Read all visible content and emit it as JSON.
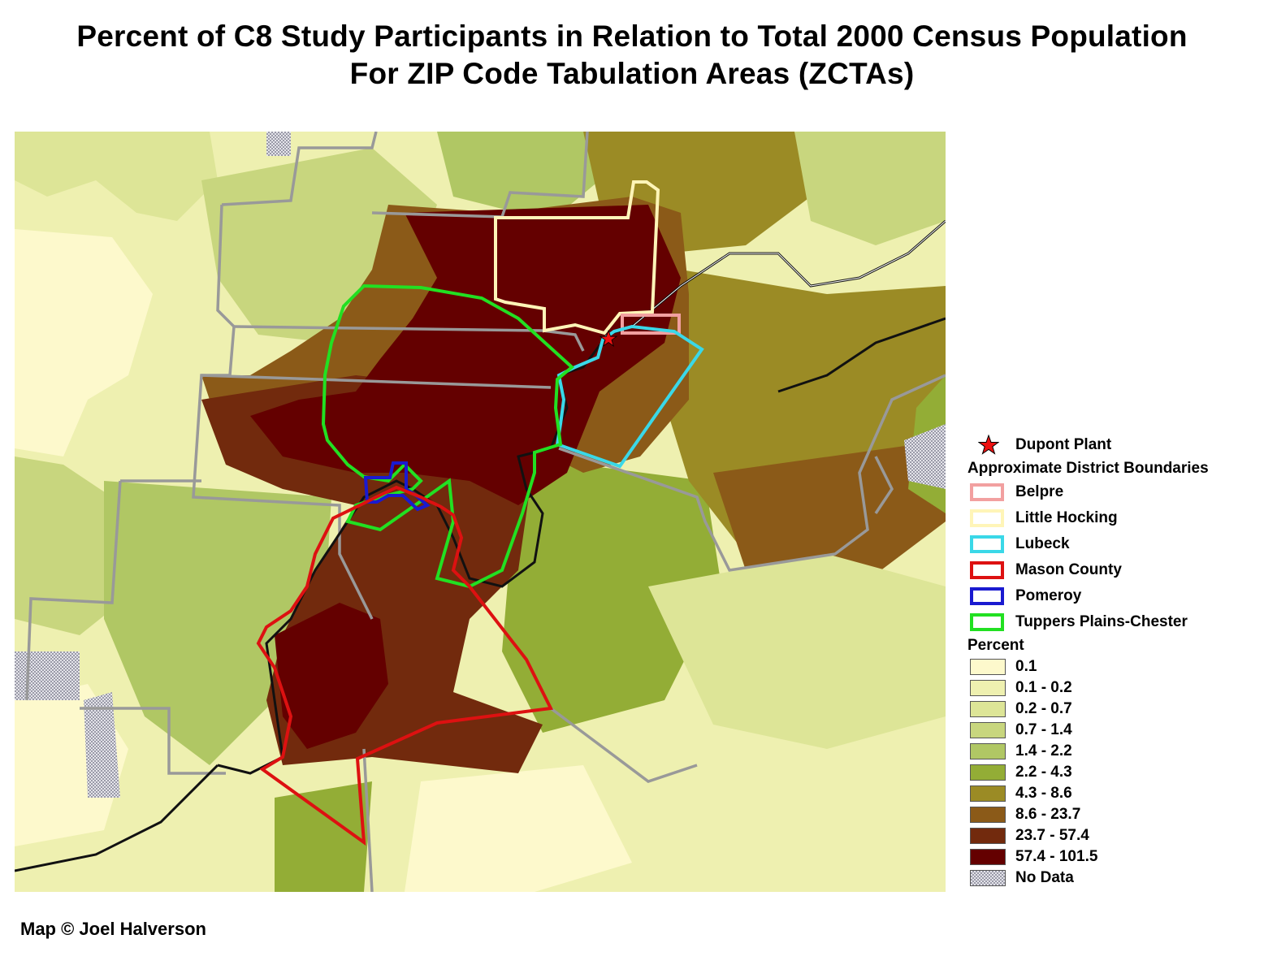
{
  "title": {
    "line1": "Percent of C8 Study Participants in Relation to Total 2000 Census Population",
    "line2": "For ZIP Code Tabulation Areas (ZCTAs)"
  },
  "legend": {
    "plant_label": "Dupont Plant",
    "plant_icon": "red-star-icon",
    "districts_heading": "Approximate District Boundaries",
    "districts": [
      {
        "name": "Belpre",
        "color": "#f2a0a0"
      },
      {
        "name": "Little Hocking",
        "color": "#fff5b8"
      },
      {
        "name": "Lubeck",
        "color": "#3ad8e8"
      },
      {
        "name": "Mason County",
        "color": "#dd1111"
      },
      {
        "name": "Pomeroy",
        "color": "#1a1ad0"
      },
      {
        "name": "Tuppers Plains-Chester",
        "color": "#22e022"
      }
    ],
    "percent_heading": "Percent",
    "classes": [
      {
        "label": "0.1",
        "color": "#fdf9cc"
      },
      {
        "label": "0.1 - 0.2",
        "color": "#eef0b0"
      },
      {
        "label": "0.2 - 0.7",
        "color": "#dde597"
      },
      {
        "label": "0.7 - 1.4",
        "color": "#c8d67e"
      },
      {
        "label": "1.4 - 2.2",
        "color": "#b0c764"
      },
      {
        "label": "2.2 - 4.3",
        "color": "#93ad36"
      },
      {
        "label": "4.3 - 8.6",
        "color": "#9b8b25"
      },
      {
        "label": "8.6 - 23.7",
        "color": "#8b5a18"
      },
      {
        "label": "23.7 - 57.4",
        "color": "#722a0d"
      },
      {
        "label": "57.4 - 101.5",
        "color": "#640000"
      },
      {
        "label": "No Data",
        "color": "#c8c8d0"
      }
    ]
  },
  "credit": "Map © Joel Halverson"
}
